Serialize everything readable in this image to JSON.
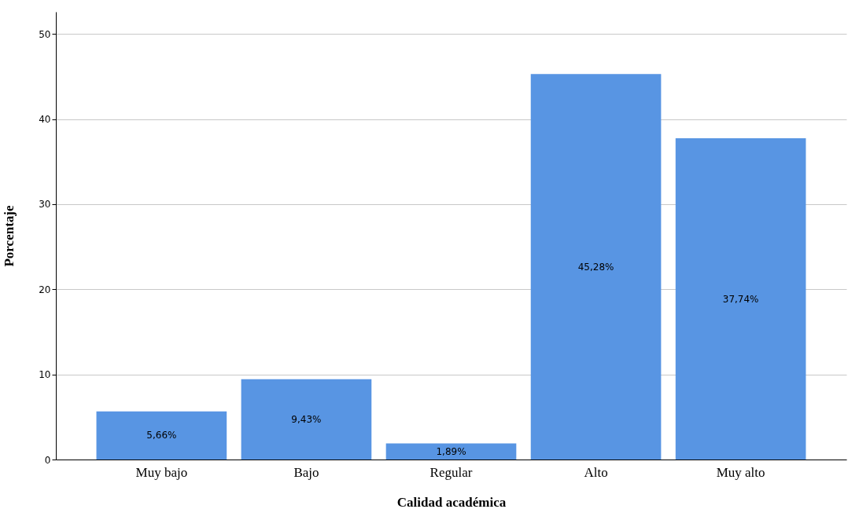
{
  "chart_data": {
    "type": "bar",
    "xlabel": "Calidad académica",
    "ylabel": "Porcentaje",
    "categories": [
      "Muy bajo",
      "Bajo",
      "Regular",
      "Alto",
      "Muy alto"
    ],
    "values": [
      5.66,
      9.43,
      1.89,
      45.28,
      37.74
    ],
    "value_labels": [
      "5,66%",
      "9,43%",
      "1,89%",
      "45,28%",
      "37,74%"
    ],
    "color": "#5895e3",
    "ylim": [
      0,
      52.6
    ],
    "yticks": [
      0,
      10,
      20,
      30,
      40,
      50
    ],
    "grid": "y"
  }
}
